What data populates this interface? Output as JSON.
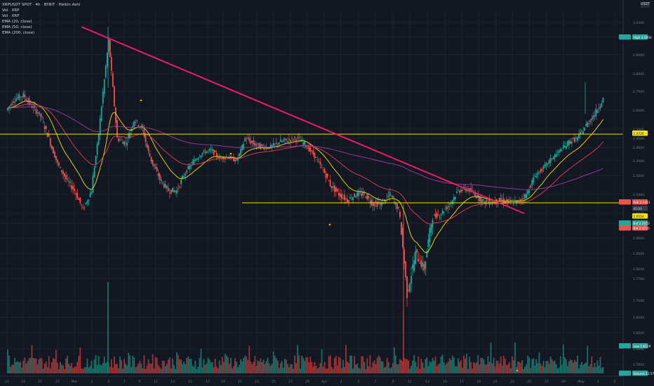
{
  "header": {
    "title": "XRPUSDT SPOT · 4h · BYBIT · Heikin Ashi",
    "vol1": "Vol · XRP",
    "vol2": "Vol · XRP",
    "ema1": "EMA (20, close)",
    "ema2": "EMA (50, close)",
    "ema3": "EMA (200, close)",
    "currency": "USDT"
  },
  "colors": {
    "background": "#131722",
    "up": "#26a69a",
    "down": "#ef5350",
    "trendline": "#e91e63",
    "hline": "#f5e400",
    "ema20": "#f5e400",
    "ema50": "#e0405a",
    "ema200": "#9c3fa0"
  },
  "chart_data": {
    "type": "candlestick",
    "title": "XRPUSDT SPOT · 4h · BYBIT · Heikin Ashi",
    "y_axis_ticks": [
      "3.1000",
      "3.0000",
      "2.9000",
      "2.8000",
      "2.7000",
      "2.6000",
      "2.5000",
      "2.4500",
      "2.4000",
      "2.3000",
      "2.2000",
      "2.1000",
      "2.0000",
      "1.9500",
      "1.9000",
      "1.8500",
      "1.8000",
      "1.7700",
      "1.7000",
      "1.6500",
      "1.6000",
      "1.5500",
      "1.5000"
    ],
    "x_axis_ticks": [
      "21",
      "23",
      "25",
      "27",
      "Mar",
      "3",
      "5",
      "7",
      "9",
      "11",
      "13",
      "15",
      "17",
      "19",
      "21",
      "23",
      "25",
      "27",
      "29",
      "Apr",
      "3",
      "5",
      "7",
      "9",
      "11",
      "13",
      "15",
      "17",
      "19",
      "21",
      "23",
      "25",
      "27",
      "29",
      "May",
      "3",
      "5"
    ],
    "price_labels": [
      {
        "label": "High",
        "value": "3.0092"
      },
      {
        "label": "",
        "value": "2.4726"
      },
      {
        "label": "Ask",
        "value": "2.1451"
      },
      {
        "label": "",
        "value": "45:00"
      },
      {
        "label": "",
        "value": "2.0554"
      },
      {
        "label": "Bid",
        "value": "2.0553"
      },
      {
        "label": "Bid",
        "value": "2.0710"
      },
      {
        "label": "Low",
        "value": "1.6129"
      },
      {
        "label": "Volume",
        "value": "13.571M"
      }
    ],
    "horizontal_lines": [
      2.4726,
      2.0554
    ],
    "trendline": {
      "from": [
        "Feb 28",
        3.07
      ],
      "to": [
        "Apr 19",
        2.0
      ]
    },
    "series": [
      {
        "name": "Heikin Ashi close (approx.)",
        "points": [
          [
            "Feb 19",
            2.6
          ],
          [
            "Feb 20",
            2.66
          ],
          [
            "Feb 21",
            2.68
          ],
          [
            "Feb 22",
            2.62
          ],
          [
            "Feb 23",
            2.57
          ],
          [
            "Feb 24",
            2.45
          ],
          [
            "Feb 25",
            2.28
          ],
          [
            "Feb 26",
            2.18
          ],
          [
            "Feb 27",
            2.12
          ],
          [
            "Feb 28",
            2.02
          ],
          [
            "Mar 1",
            2.12
          ],
          [
            "Mar 2",
            2.55
          ],
          [
            "Mar 3",
            2.98
          ],
          [
            "Mar 4",
            2.45
          ],
          [
            "Mar 5",
            2.42
          ],
          [
            "Mar 6",
            2.55
          ],
          [
            "Mar 7",
            2.5
          ],
          [
            "Mar 8",
            2.3
          ],
          [
            "Mar 9",
            2.18
          ],
          [
            "Mar 10",
            2.12
          ],
          [
            "Mar 11",
            2.12
          ],
          [
            "Mar 12",
            2.22
          ],
          [
            "Mar 13",
            2.3
          ],
          [
            "Mar 14",
            2.36
          ],
          [
            "Mar 15",
            2.38
          ],
          [
            "Mar 16",
            2.32
          ],
          [
            "Mar 17",
            2.33
          ],
          [
            "Mar 18",
            2.3
          ],
          [
            "Mar 19",
            2.45
          ],
          [
            "Mar 20",
            2.42
          ],
          [
            "Mar 21",
            2.4
          ],
          [
            "Mar 22",
            2.4
          ],
          [
            "Mar 23",
            2.43
          ],
          [
            "Mar 24",
            2.44
          ],
          [
            "Mar 25",
            2.45
          ],
          [
            "Mar 26",
            2.42
          ],
          [
            "Mar 27",
            2.35
          ],
          [
            "Mar 28",
            2.25
          ],
          [
            "Mar 29",
            2.15
          ],
          [
            "Mar 30",
            2.1
          ],
          [
            "Mar 31",
            2.07
          ],
          [
            "Apr 1",
            2.1
          ],
          [
            "Apr 2",
            2.1
          ],
          [
            "Apr 3",
            2.05
          ],
          [
            "Apr 4",
            2.05
          ],
          [
            "Apr 5",
            2.1
          ],
          [
            "Apr 6",
            2.02
          ],
          [
            "Apr 7",
            1.72
          ],
          [
            "Apr 8",
            1.85
          ],
          [
            "Apr 9",
            1.8
          ],
          [
            "Apr 10",
            1.98
          ],
          [
            "Apr 11",
            2.0
          ],
          [
            "Apr 12",
            2.05
          ],
          [
            "Apr 13",
            2.12
          ],
          [
            "Apr 14",
            2.13
          ],
          [
            "Apr 15",
            2.1
          ],
          [
            "Apr 16",
            2.06
          ],
          [
            "Apr 17",
            2.06
          ],
          [
            "Apr 18",
            2.07
          ],
          [
            "Apr 19",
            2.06
          ],
          [
            "Apr 20",
            2.06
          ],
          [
            "Apr 21",
            2.1
          ],
          [
            "Apr 22",
            2.2
          ],
          [
            "Apr 23",
            2.25
          ],
          [
            "Apr 24",
            2.32
          ],
          [
            "Apr 25",
            2.38
          ],
          [
            "Apr 26",
            2.43
          ],
          [
            "Apr 27",
            2.45
          ],
          [
            "Apr 28",
            2.52
          ],
          [
            "Apr 29",
            2.58
          ],
          [
            "Apr 30",
            2.66
          ]
        ]
      },
      {
        "name": "EMA (20, close)"
      },
      {
        "name": "EMA (50, close)"
      },
      {
        "name": "EMA (200, close)"
      }
    ],
    "volume": {
      "unit": "M",
      "last": "13.571M"
    }
  }
}
